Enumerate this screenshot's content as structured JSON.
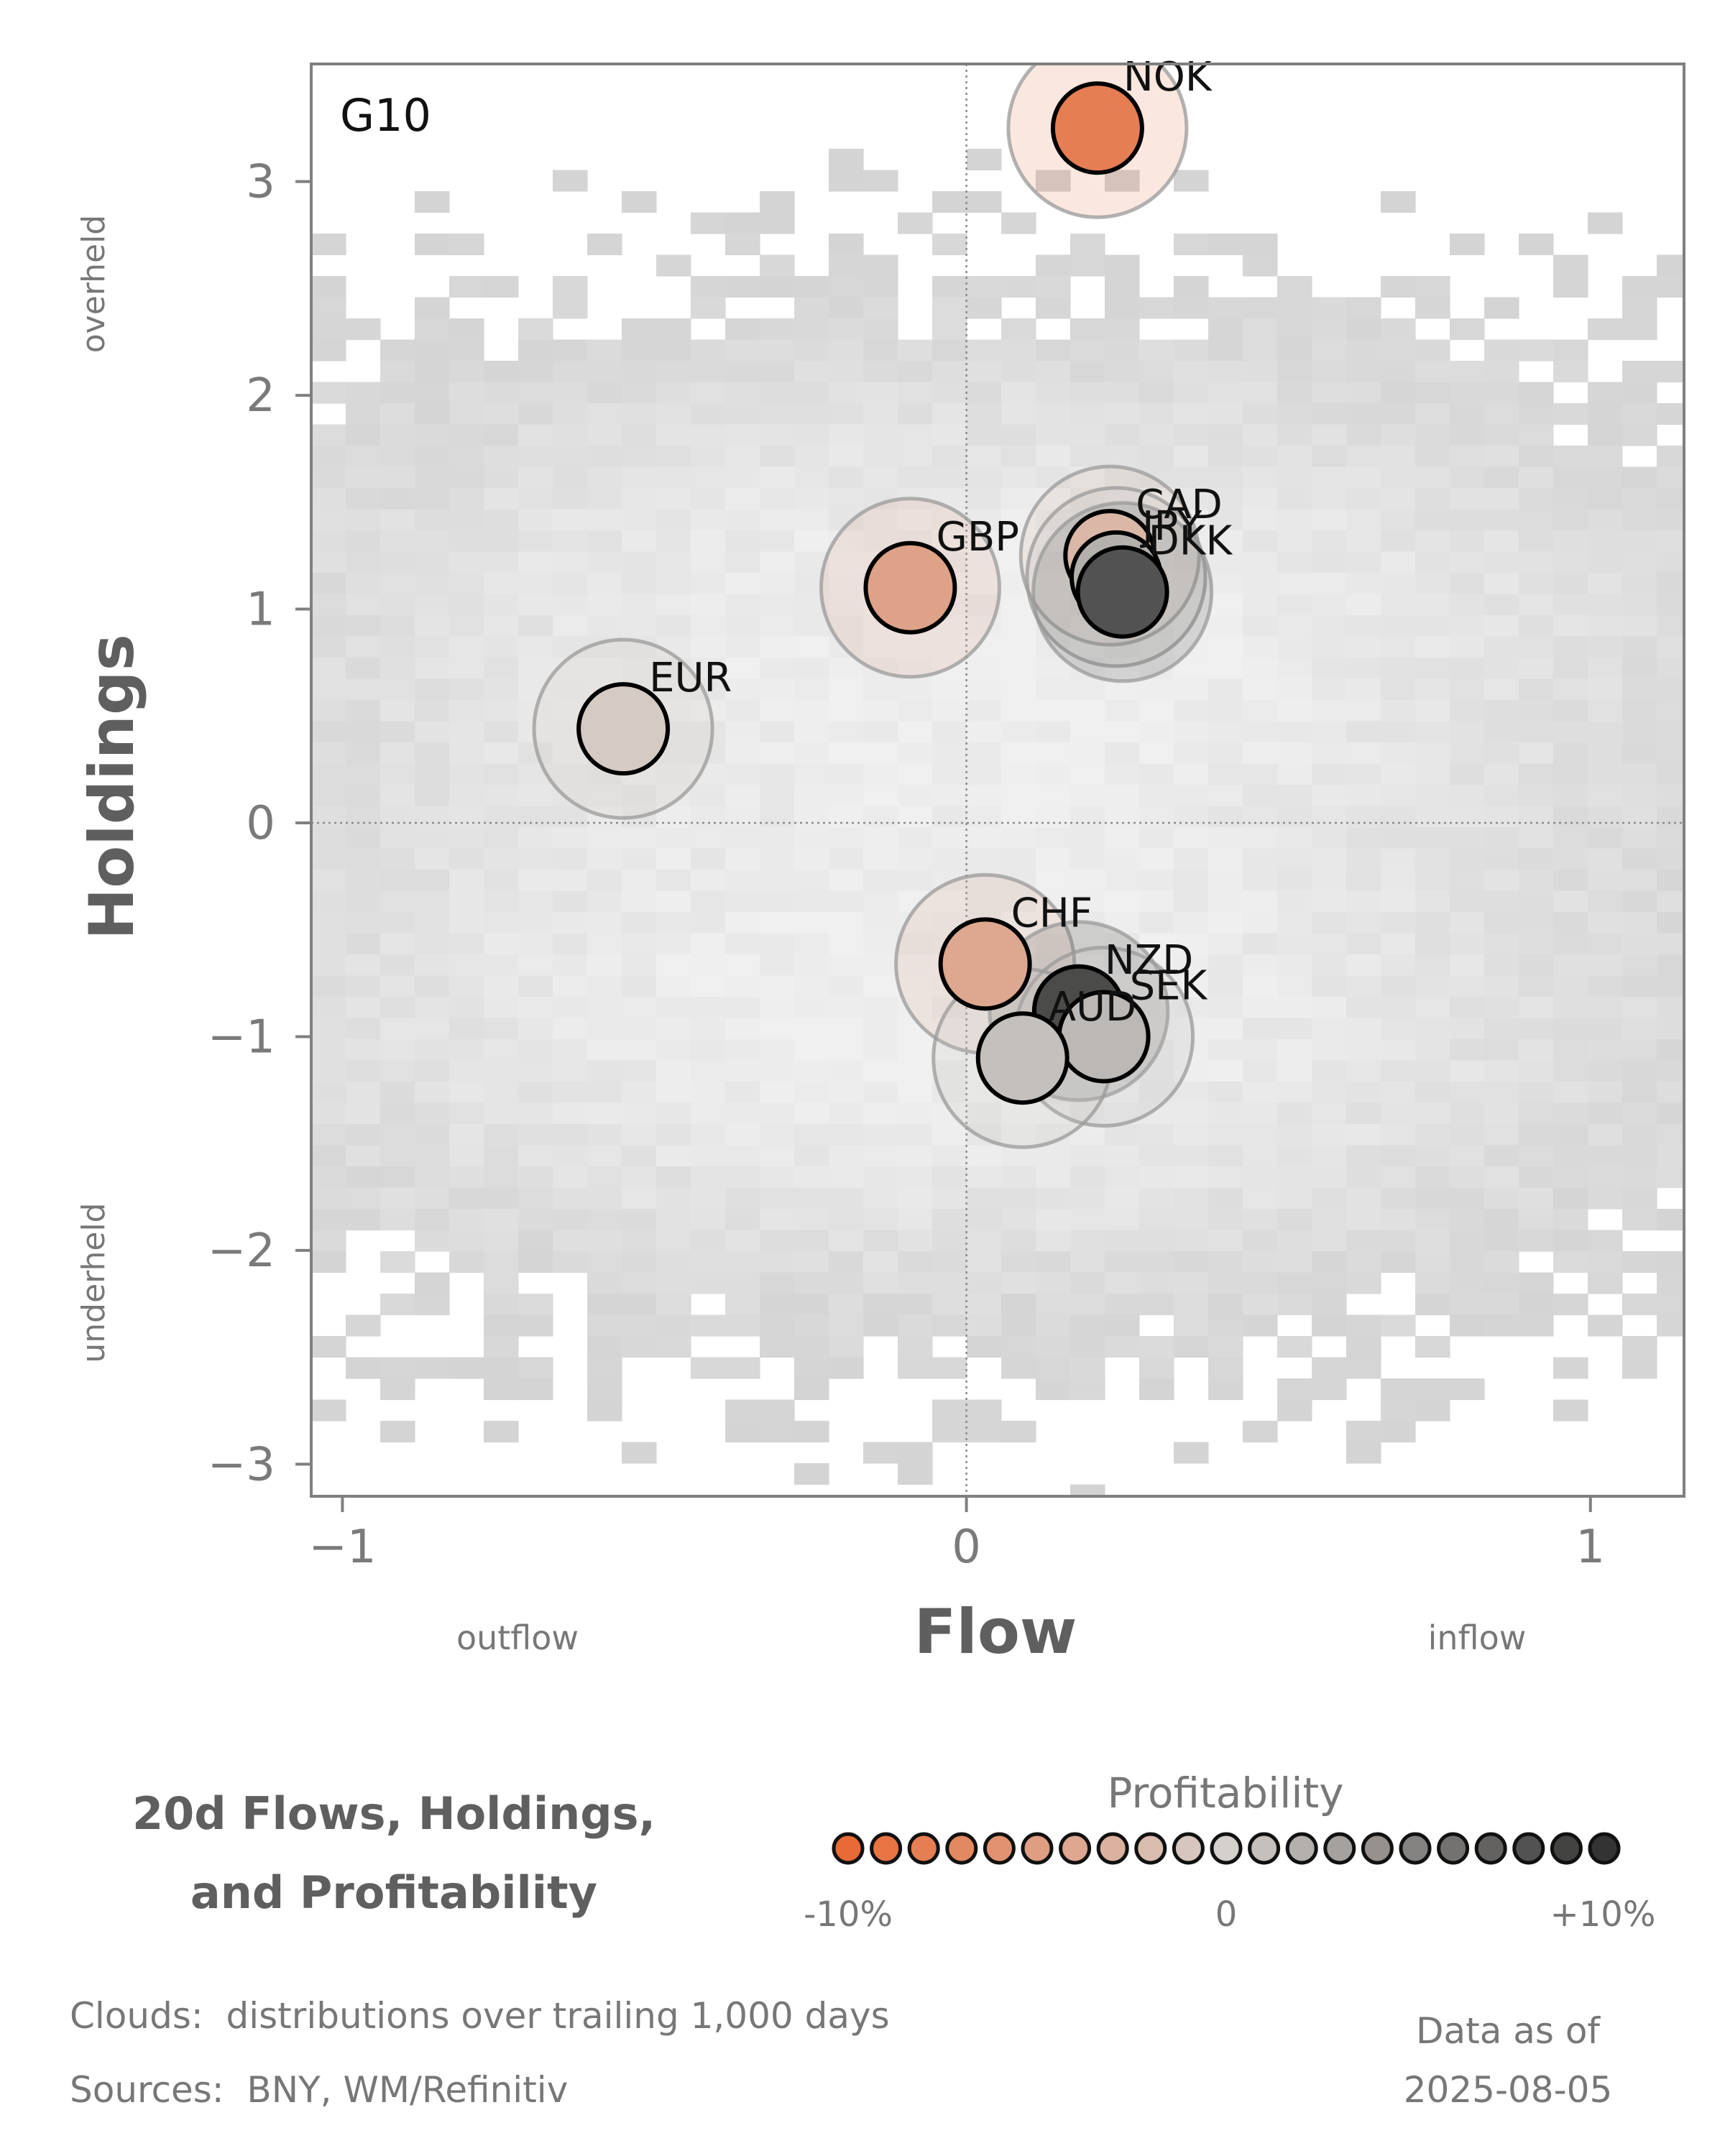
{
  "chart_data": {
    "type": "scatter",
    "panel_label": "G10",
    "title_lines": [
      "20d Flows, Holdings,",
      "and Profitability"
    ],
    "xlabel": "Flow",
    "ylabel": "Holdings",
    "x_annotations": {
      "left": "outflow",
      "right": "inflow"
    },
    "y_annotations": {
      "top": "overheld",
      "bottom": "underheld"
    },
    "xlim": [
      -1.05,
      1.15
    ],
    "ylim": [
      -3.15,
      3.55
    ],
    "xticks": [
      -1,
      0,
      1
    ],
    "xtick_labels": [
      "−1",
      "0",
      "1"
    ],
    "yticks": [
      -3,
      -2,
      -1,
      0,
      1,
      2,
      3
    ],
    "ytick_labels": [
      "−3",
      "−2",
      "−1",
      "0",
      "1",
      "2",
      "3"
    ],
    "reference_lines": {
      "x": 0,
      "y": 0,
      "style": "dotted"
    },
    "colorscale": {
      "title": "Profitability",
      "min_label": "-10%",
      "mid_label": "0",
      "max_label": "+10%",
      "min": -10,
      "max": 10,
      "low_color": "#ea6a35",
      "mid_color": "#d4d0cc",
      "high_color": "#333333"
    },
    "points": [
      {
        "label": "NOK",
        "x": 0.21,
        "y": 3.25,
        "profitability": -8.0
      },
      {
        "label": "GBP",
        "x": -0.09,
        "y": 1.1,
        "profitability": -4.5
      },
      {
        "label": "CAD",
        "x": 0.23,
        "y": 1.25,
        "profitability": -2.5
      },
      {
        "label": "JPY",
        "x": 0.24,
        "y": 1.15,
        "profitability": 2.0
      },
      {
        "label": "DKK",
        "x": 0.25,
        "y": 1.08,
        "profitability": 8.0
      },
      {
        "label": "EUR",
        "x": -0.55,
        "y": 0.44,
        "profitability": -0.5
      },
      {
        "label": "CHF",
        "x": 0.03,
        "y": -0.66,
        "profitability": -4.0
      },
      {
        "label": "NZD",
        "x": 0.18,
        "y": -0.88,
        "profitability": 8.5
      },
      {
        "label": "SEK",
        "x": 0.22,
        "y": -1.0,
        "profitability": 1.5
      },
      {
        "label": "AUD",
        "x": 0.09,
        "y": -1.1,
        "profitability": 1.0
      }
    ]
  },
  "footer": {
    "clouds_note": "Clouds:  distributions over trailing 1,000 days",
    "sources_note": "Sources:  BNY, WM/Refinitiv",
    "asof_label": "Data as of",
    "asof_date": "2025-08-05"
  }
}
